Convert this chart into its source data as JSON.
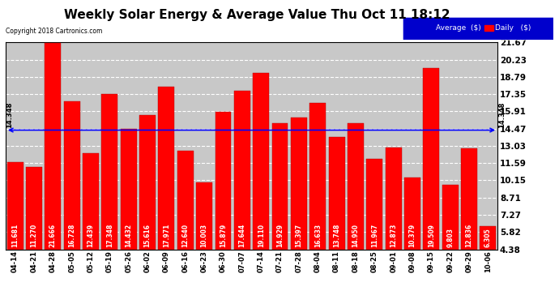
{
  "title": "Weekly Solar Energy & Average Value Thu Oct 11 18:12",
  "copyright": "Copyright 2018 Cartronics.com",
  "categories": [
    "04-14",
    "04-21",
    "04-28",
    "05-05",
    "05-12",
    "05-19",
    "05-26",
    "06-02",
    "06-09",
    "06-16",
    "06-23",
    "06-30",
    "07-07",
    "07-14",
    "07-21",
    "07-28",
    "08-04",
    "08-11",
    "08-18",
    "08-25",
    "09-01",
    "09-08",
    "09-15",
    "09-22",
    "09-29",
    "10-06"
  ],
  "values": [
    11.681,
    11.27,
    21.666,
    16.728,
    12.439,
    17.348,
    14.432,
    15.616,
    17.971,
    12.64,
    10.003,
    15.879,
    17.644,
    19.11,
    14.929,
    15.397,
    16.633,
    13.748,
    14.95,
    11.967,
    12.873,
    10.379,
    19.509,
    9.803,
    12.836,
    6.305
  ],
  "bar_color": "#FF0000",
  "average_value": 14.348,
  "average_line_color": "#0000FF",
  "yticks": [
    4.38,
    5.82,
    7.27,
    8.71,
    10.15,
    11.59,
    13.03,
    14.47,
    15.91,
    17.35,
    18.79,
    20.23,
    21.67
  ],
  "ymin": 4.38,
  "ymax": 21.67,
  "bg_color": "#FFFFFF",
  "plot_bg_color": "#C8C8C8",
  "title_fontsize": 11,
  "legend_bg_color": "#0000CC",
  "legend_daily_color": "#FF0000",
  "left_avg_label": "14.348",
  "right_avg_label": "14.348",
  "value_label_fontsize": 5.5,
  "ytick_fontsize": 7.5,
  "xtick_fontsize": 6.0
}
